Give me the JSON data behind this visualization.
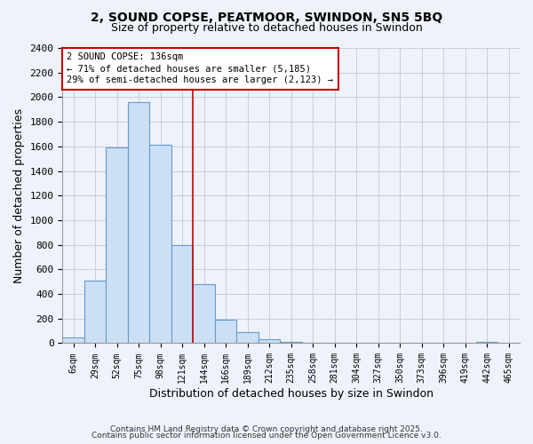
{
  "title_line1": "2, SOUND COPSE, PEATMOOR, SWINDON, SN5 5BQ",
  "title_line2": "Size of property relative to detached houses in Swindon",
  "xlabel": "Distribution of detached houses by size in Swindon",
  "ylabel": "Number of detached properties",
  "bar_labels": [
    "6sqm",
    "29sqm",
    "52sqm",
    "75sqm",
    "98sqm",
    "121sqm",
    "144sqm",
    "166sqm",
    "189sqm",
    "212sqm",
    "235sqm",
    "258sqm",
    "281sqm",
    "304sqm",
    "327sqm",
    "350sqm",
    "373sqm",
    "396sqm",
    "419sqm",
    "442sqm",
    "465sqm"
  ],
  "bar_values": [
    50,
    510,
    1590,
    1960,
    1610,
    800,
    480,
    190,
    90,
    35,
    10,
    5,
    2,
    0,
    0,
    0,
    0,
    0,
    0,
    10,
    0
  ],
  "bar_color": "#cce0f5",
  "bar_edge_color": "#6699cc",
  "ylim": [
    0,
    2400
  ],
  "yticks": [
    0,
    200,
    400,
    600,
    800,
    1000,
    1200,
    1400,
    1600,
    1800,
    2000,
    2200,
    2400
  ],
  "marker_label": "2 SOUND COPSE: 136sqm",
  "annotation_line1": "← 71% of detached houses are smaller (5,185)",
  "annotation_line2": "29% of semi-detached houses are larger (2,123) →",
  "annotation_box_color": "#ffffff",
  "annotation_box_edge_color": "#cc0000",
  "red_line_color": "#cc0000",
  "grid_color": "#ccccdd",
  "background_color": "#eef2fa",
  "footer_line1": "Contains HM Land Registry data © Crown copyright and database right 2025.",
  "footer_line2": "Contains public sector information licensed under the Open Government Licence v3.0.",
  "red_line_x": 5.5
}
